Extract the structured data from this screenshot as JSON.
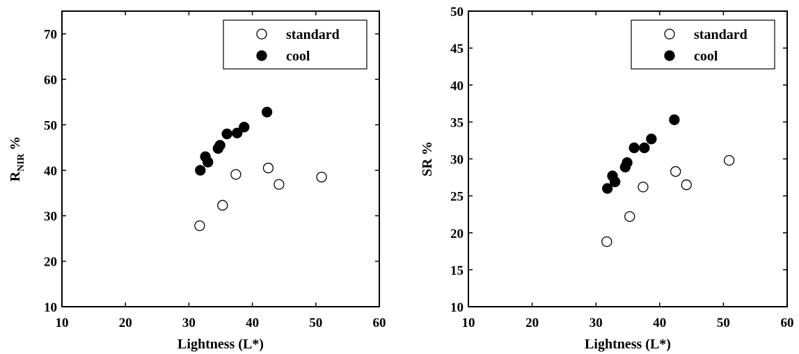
{
  "chart_data": [
    {
      "type": "scatter",
      "title": "",
      "xlabel": "Lightness (L*)",
      "ylabel_main": "R",
      "ylabel_sub": "NIR",
      "ylabel_suffix": " %",
      "xlim": [
        10,
        60
      ],
      "ylim": [
        10,
        75
      ],
      "xticks": [
        10,
        20,
        30,
        40,
        50,
        60
      ],
      "yticks": [
        10,
        20,
        30,
        40,
        50,
        60,
        70
      ],
      "grid": false,
      "legend_position": "top-right",
      "series": [
        {
          "name": "standard",
          "marker": "open-circle",
          "points": [
            [
              31.7,
              27.8
            ],
            [
              35.3,
              32.3
            ],
            [
              37.4,
              39.1
            ],
            [
              42.5,
              40.5
            ],
            [
              44.2,
              36.9
            ],
            [
              50.9,
              38.5
            ]
          ]
        },
        {
          "name": "cool",
          "marker": "filled-circle",
          "points": [
            [
              31.8,
              40.0
            ],
            [
              32.6,
              43.0
            ],
            [
              33.0,
              41.8
            ],
            [
              34.6,
              44.8
            ],
            [
              34.9,
              45.5
            ],
            [
              36.0,
              48.0
            ],
            [
              37.6,
              48.2
            ],
            [
              38.7,
              49.5
            ],
            [
              42.3,
              52.8
            ]
          ]
        }
      ]
    },
    {
      "type": "scatter",
      "title": "",
      "xlabel": "Lightness (L*)",
      "ylabel_main": "SR",
      "ylabel_sub": "",
      "ylabel_suffix": " %",
      "xlim": [
        10,
        60
      ],
      "ylim": [
        10,
        50
      ],
      "xticks": [
        10,
        20,
        30,
        40,
        50,
        60
      ],
      "yticks": [
        10,
        15,
        20,
        25,
        30,
        35,
        40,
        45,
        50
      ],
      "grid": false,
      "legend_position": "top-right",
      "series": [
        {
          "name": "standard",
          "marker": "open-circle",
          "points": [
            [
              31.7,
              18.8
            ],
            [
              35.3,
              22.2
            ],
            [
              37.4,
              26.2
            ],
            [
              42.5,
              28.3
            ],
            [
              44.2,
              26.5
            ],
            [
              50.9,
              29.8
            ]
          ]
        },
        {
          "name": "cool",
          "marker": "filled-circle",
          "points": [
            [
              31.8,
              26.0
            ],
            [
              32.6,
              27.7
            ],
            [
              33.0,
              26.9
            ],
            [
              34.6,
              28.9
            ],
            [
              34.9,
              29.5
            ],
            [
              36.0,
              31.5
            ],
            [
              37.6,
              31.5
            ],
            [
              38.7,
              32.7
            ],
            [
              42.3,
              35.3
            ]
          ]
        }
      ]
    }
  ]
}
